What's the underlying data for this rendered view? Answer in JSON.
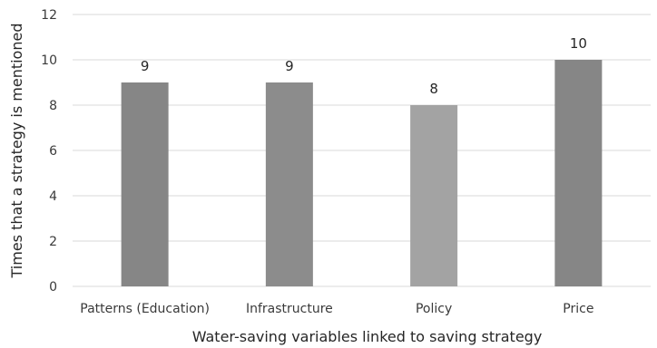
{
  "chart_data": {
    "type": "bar",
    "title": "",
    "xlabel": "Water-saving variables linked to saving strategy",
    "ylabel": "Times that a strategy is mentioned",
    "categories": [
      "Patterns (Education)",
      "Infrastructure",
      "Policy",
      "Price"
    ],
    "values": [
      9,
      9,
      8,
      10
    ],
    "data_labels": [
      "9",
      "9",
      "8",
      "10"
    ],
    "ylim": [
      0,
      12
    ],
    "yticks": [
      0,
      2,
      4,
      6,
      8,
      10,
      12
    ],
    "grid": true,
    "legend": "none",
    "bar_colors": [
      "#868686",
      "#8c8c8c",
      "#a3a3a3",
      "#868686"
    ],
    "grid_color": "#d9d9d9",
    "text_color": "#3a3a3a"
  }
}
